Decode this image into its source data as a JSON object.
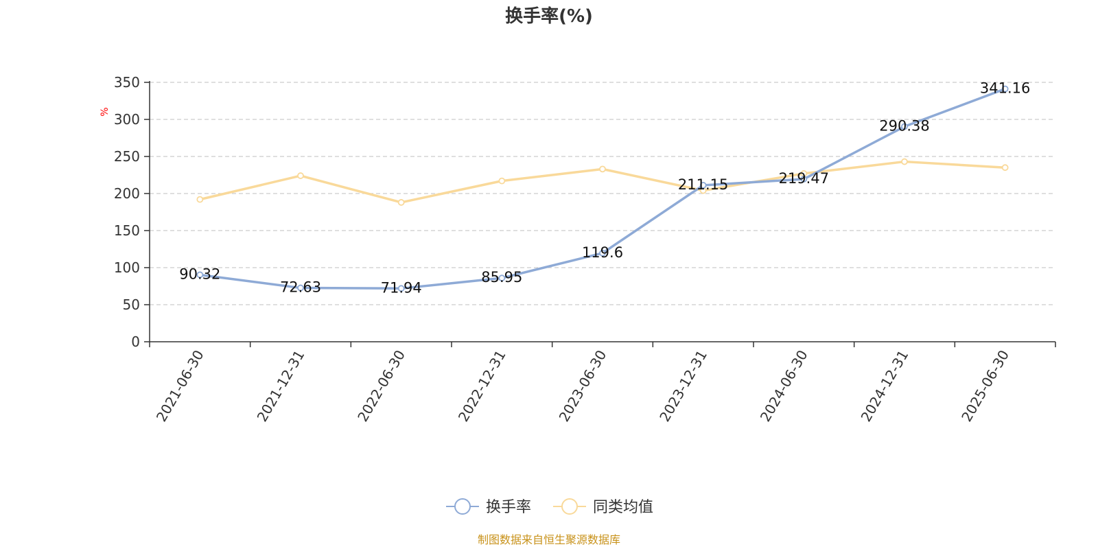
{
  "chart_data": {
    "type": "line",
    "title": "换手率(%)",
    "y_unit": "%",
    "categories": [
      "2021-06-30",
      "2021-12-31",
      "2022-06-30",
      "2022-12-31",
      "2023-06-30",
      "2023-12-31",
      "2024-06-30",
      "2024-12-31",
      "2025-06-30"
    ],
    "ylim": [
      0,
      350
    ],
    "yticks": [
      0,
      50,
      100,
      150,
      200,
      250,
      300,
      350
    ],
    "grid": true,
    "legend_position": "bottom",
    "series": [
      {
        "name": "换手率",
        "color": "#8eaad6",
        "values": [
          90.32,
          72.63,
          71.94,
          85.95,
          119.6,
          211.15,
          219.47,
          290.38,
          341.16
        ],
        "labels": [
          "90.32",
          "72.63",
          "71.94",
          "85.95",
          "119.6",
          "211.15",
          "219.47",
          "290.38",
          "341.16"
        ]
      },
      {
        "name": "同类均值",
        "color": "#f9d99a",
        "values": [
          192,
          224,
          188,
          217,
          233,
          204,
          227,
          243,
          235
        ]
      }
    ],
    "source": "制图数据来自恒生聚源数据库"
  }
}
